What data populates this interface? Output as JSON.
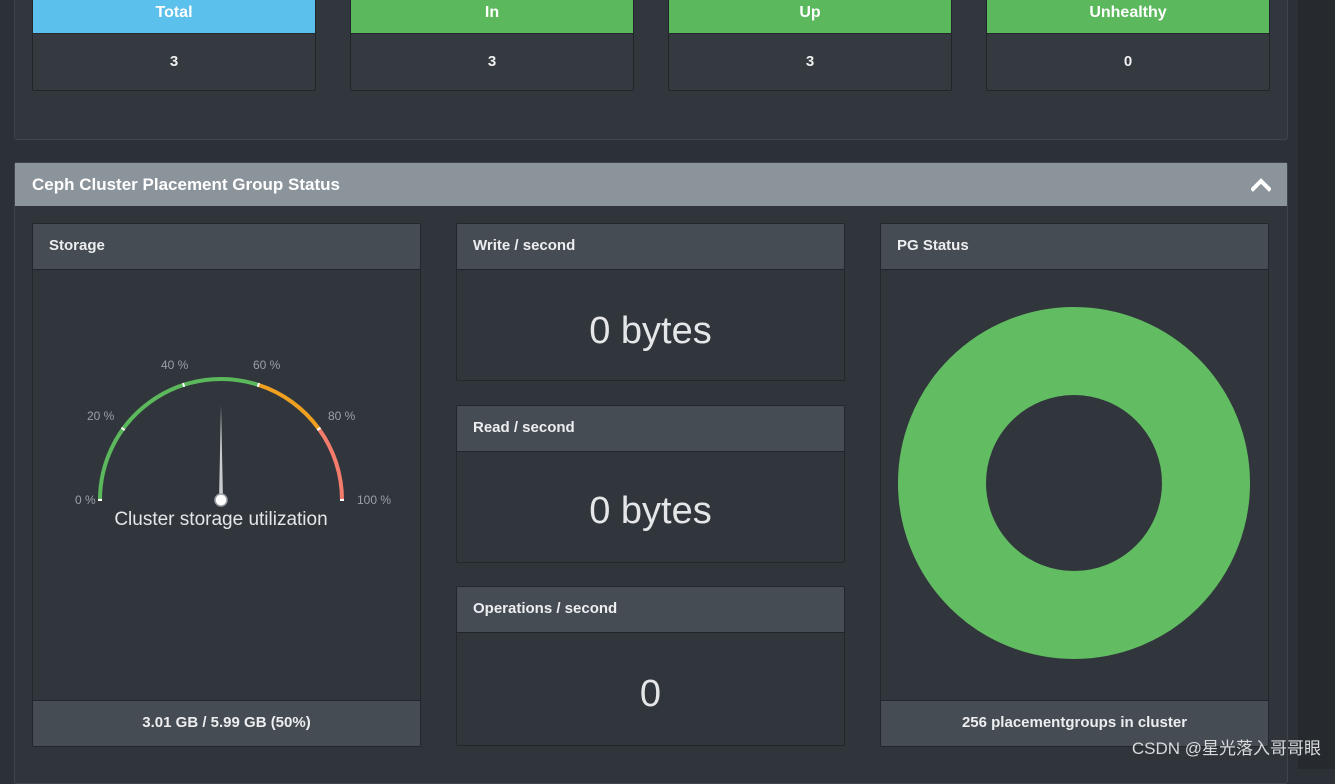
{
  "osd": {
    "boxes": [
      {
        "label": "Total",
        "value": "3",
        "color": "#5bc0eb"
      },
      {
        "label": "In",
        "value": "3",
        "color": "#5cb85c"
      },
      {
        "label": "Up",
        "value": "3",
        "color": "#5cb85c"
      },
      {
        "label": "Unhealthy",
        "value": "0",
        "color": "#5cb85c"
      }
    ]
  },
  "pg_section": {
    "title": "Ceph Cluster Placement Group Status",
    "collapse_icon": "chevron-up-icon"
  },
  "storage": {
    "title": "Storage",
    "gauge_label": "Cluster storage utilization",
    "ticks": [
      "0 %",
      "20 %",
      "40 %",
      "60 %",
      "80 %",
      "100 %"
    ],
    "utilization_percent": 50,
    "band_colors": [
      "#5cb85c",
      "#f0a020",
      "#f47c6c"
    ],
    "footer": "3.01 GB / 5.99 GB (50%)"
  },
  "write": {
    "title": "Write / second",
    "value": "0 bytes"
  },
  "read": {
    "title": "Read / second",
    "value": "0 bytes"
  },
  "ops": {
    "title": "Operations / second",
    "value": "0"
  },
  "pg_status": {
    "title": "PG Status",
    "footer": "256 placementgroups in cluster",
    "color": "#62bd62"
  },
  "watermark": "CSDN @星光落入哥哥眼"
}
